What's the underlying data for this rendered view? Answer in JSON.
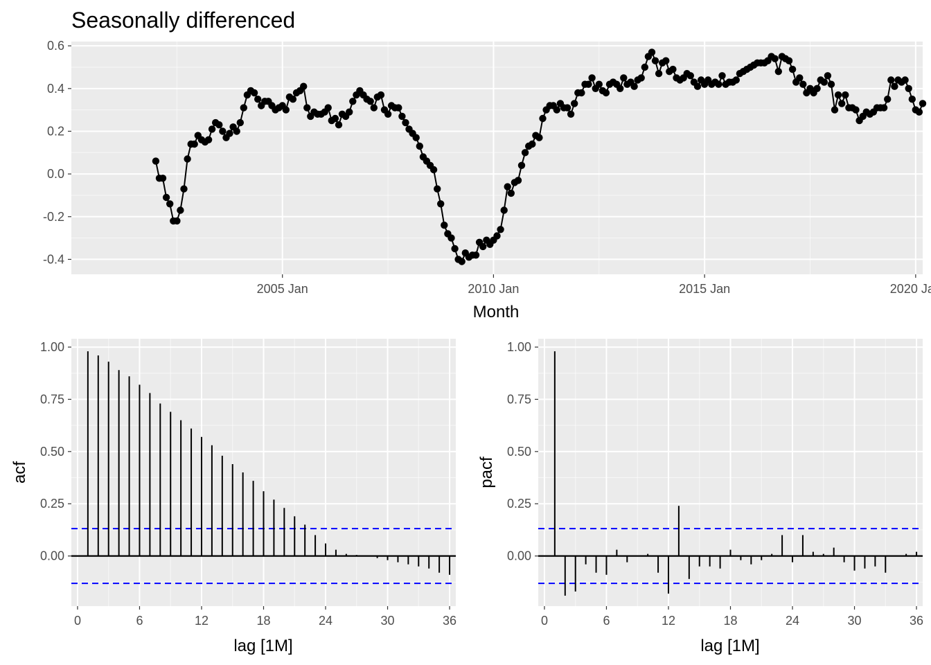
{
  "title": "Seasonally differenced",
  "colors": {
    "panel": "#ebebeb",
    "grid": "#ffffff",
    "series": "#000000",
    "ci": "#0000ff"
  },
  "top": {
    "xlabel": "Month",
    "ylabel": "",
    "x_ticks": [
      "2005 Jan",
      "2010 Jan",
      "2015 Jan",
      "2020 Jan"
    ],
    "y_ticks": [
      "0.6",
      "0.4",
      "0.2",
      "0.0",
      "-0.2",
      "-0.4"
    ]
  },
  "acf": {
    "ylabel": "acf",
    "xlabel": "lag [1M]"
  },
  "pacf": {
    "ylabel": "pacf",
    "xlabel": "lag [1M]"
  },
  "lag_ticks": [
    "0",
    "6",
    "12",
    "18",
    "24",
    "30",
    "36"
  ],
  "corr_ticks": [
    "1.00",
    "0.75",
    "0.50",
    "0.25",
    "0.00"
  ],
  "chart_data": [
    {
      "type": "line",
      "title": "Seasonally differenced",
      "xlabel": "Month",
      "ylabel": "",
      "x_start": "2002-01",
      "x_end": "2019-09",
      "xlim": [
        "2000-01",
        "2020-03"
      ],
      "ylim": [
        -0.47,
        0.62
      ],
      "markers": true,
      "grid": true,
      "values": [
        0.06,
        -0.02,
        -0.02,
        -0.11,
        -0.14,
        -0.22,
        -0.22,
        -0.17,
        -0.07,
        0.07,
        0.14,
        0.14,
        0.18,
        0.16,
        0.15,
        0.16,
        0.21,
        0.24,
        0.23,
        0.2,
        0.17,
        0.19,
        0.22,
        0.2,
        0.24,
        0.31,
        0.37,
        0.39,
        0.38,
        0.35,
        0.32,
        0.34,
        0.34,
        0.32,
        0.3,
        0.31,
        0.32,
        0.3,
        0.36,
        0.35,
        0.38,
        0.39,
        0.41,
        0.31,
        0.27,
        0.29,
        0.28,
        0.28,
        0.29,
        0.31,
        0.25,
        0.26,
        0.23,
        0.28,
        0.27,
        0.29,
        0.34,
        0.37,
        0.39,
        0.37,
        0.35,
        0.34,
        0.31,
        0.36,
        0.37,
        0.3,
        0.28,
        0.32,
        0.31,
        0.31,
        0.27,
        0.24,
        0.21,
        0.19,
        0.17,
        0.13,
        0.08,
        0.06,
        0.04,
        0.02,
        -0.07,
        -0.14,
        -0.24,
        -0.28,
        -0.3,
        -0.35,
        -0.4,
        -0.41,
        -0.37,
        -0.39,
        -0.38,
        -0.38,
        -0.32,
        -0.34,
        -0.31,
        -0.33,
        -0.31,
        -0.29,
        -0.26,
        -0.17,
        -0.06,
        -0.09,
        -0.04,
        -0.03,
        0.04,
        0.1,
        0.13,
        0.14,
        0.18,
        0.17,
        0.26,
        0.3,
        0.32,
        0.32,
        0.3,
        0.33,
        0.31,
        0.31,
        0.28,
        0.33,
        0.38,
        0.38,
        0.42,
        0.42,
        0.45,
        0.4,
        0.42,
        0.39,
        0.38,
        0.42,
        0.43,
        0.42,
        0.4,
        0.45,
        0.42,
        0.43,
        0.41,
        0.44,
        0.45,
        0.5,
        0.55,
        0.57,
        0.53,
        0.47,
        0.52,
        0.53,
        0.48,
        0.49,
        0.45,
        0.44,
        0.45,
        0.47,
        0.46,
        0.43,
        0.41,
        0.44,
        0.42,
        0.44,
        0.42,
        0.43,
        0.42,
        0.46,
        0.42,
        0.43,
        0.43,
        0.44,
        0.47,
        0.48,
        0.49,
        0.5,
        0.51,
        0.52,
        0.52,
        0.52,
        0.53,
        0.55,
        0.54,
        0.48,
        0.55,
        0.54,
        0.53,
        0.49,
        0.43,
        0.45,
        0.42,
        0.38,
        0.4,
        0.38,
        0.4,
        0.44,
        0.43,
        0.46,
        0.42,
        0.3,
        0.37,
        0.33,
        0.37,
        0.31,
        0.31,
        0.3,
        0.25,
        0.27,
        0.29,
        0.28,
        0.29,
        0.31,
        0.31,
        0.31,
        0.35,
        0.44,
        0.41,
        0.44,
        0.43,
        0.44,
        0.4,
        0.35,
        0.3,
        0.29,
        0.33
      ]
    },
    {
      "type": "bar",
      "name": "acf",
      "xlabel": "lag [1M]",
      "ylabel": "acf",
      "lags": [
        1,
        2,
        3,
        4,
        5,
        6,
        7,
        8,
        9,
        10,
        11,
        12,
        13,
        14,
        15,
        16,
        17,
        18,
        19,
        20,
        21,
        22,
        23,
        24,
        25,
        26,
        27,
        28,
        29,
        30,
        31,
        32,
        33,
        34,
        35,
        36
      ],
      "values": [
        0.98,
        0.96,
        0.93,
        0.89,
        0.86,
        0.82,
        0.78,
        0.73,
        0.69,
        0.65,
        0.61,
        0.57,
        0.53,
        0.48,
        0.44,
        0.4,
        0.36,
        0.31,
        0.27,
        0.23,
        0.19,
        0.15,
        0.1,
        0.06,
        0.03,
        0.01,
        0.005,
        -0.002,
        -0.01,
        -0.02,
        -0.03,
        -0.04,
        -0.05,
        -0.06,
        -0.08,
        -0.09
      ],
      "ci": 0.131,
      "xlim": [
        -0.6,
        36.6
      ],
      "ylim": [
        -0.24,
        1.04
      ]
    },
    {
      "type": "bar",
      "name": "pacf",
      "xlabel": "lag [1M]",
      "ylabel": "pacf",
      "lags": [
        1,
        2,
        3,
        4,
        5,
        6,
        7,
        8,
        9,
        10,
        11,
        12,
        13,
        14,
        15,
        16,
        17,
        18,
        19,
        20,
        21,
        22,
        23,
        24,
        25,
        26,
        27,
        28,
        29,
        30,
        31,
        32,
        33,
        34,
        35,
        36
      ],
      "values": [
        0.98,
        -0.19,
        -0.17,
        -0.04,
        -0.08,
        -0.09,
        0.03,
        -0.03,
        0.0,
        0.01,
        -0.08,
        -0.18,
        0.24,
        -0.11,
        -0.05,
        -0.05,
        -0.06,
        0.03,
        -0.02,
        -0.04,
        -0.02,
        0.01,
        0.1,
        -0.03,
        0.1,
        0.02,
        0.01,
        0.04,
        -0.03,
        -0.07,
        -0.06,
        -0.05,
        -0.08,
        0.0,
        0.01,
        0.02
      ],
      "ci": 0.131,
      "xlim": [
        -0.6,
        36.6
      ],
      "ylim": [
        -0.24,
        1.04
      ]
    }
  ]
}
